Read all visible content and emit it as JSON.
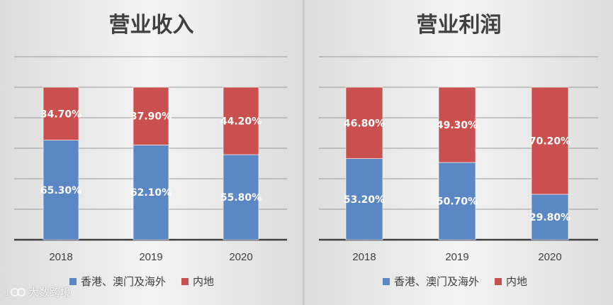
{
  "watermark": {
    "text": "大数跨境"
  },
  "colors": {
    "series0": "#5b87c5",
    "series1": "#c9504e"
  },
  "chart_data": [
    {
      "type": "bar",
      "stacked": true,
      "title": "营业收入",
      "categories": [
        "2018",
        "2019",
        "2020"
      ],
      "series": [
        {
          "name": "香港、澳门及海外",
          "values": [
            65.3,
            62.1,
            55.8
          ],
          "labels": [
            "65.30%",
            "62.10%",
            "55.80%"
          ]
        },
        {
          "name": "内地",
          "values": [
            34.7,
            37.9,
            44.2
          ],
          "labels": [
            "34.70%",
            "37.90%",
            "44.20%"
          ]
        }
      ],
      "ylim": [
        0,
        100
      ],
      "grid": true,
      "legend": "bottom"
    },
    {
      "type": "bar",
      "stacked": true,
      "title": "营业利润",
      "categories": [
        "2018",
        "2019",
        "2020"
      ],
      "series": [
        {
          "name": "香港、澳门及海外",
          "values": [
            53.2,
            50.7,
            29.8
          ],
          "labels": [
            "53.20%",
            "50.70%",
            "29.80%"
          ]
        },
        {
          "name": "内地",
          "values": [
            46.8,
            49.3,
            70.2
          ],
          "labels": [
            "46.80%",
            "49.30%",
            "70.20%"
          ]
        }
      ],
      "ylim": [
        0,
        100
      ],
      "grid": true,
      "legend": "bottom"
    }
  ]
}
